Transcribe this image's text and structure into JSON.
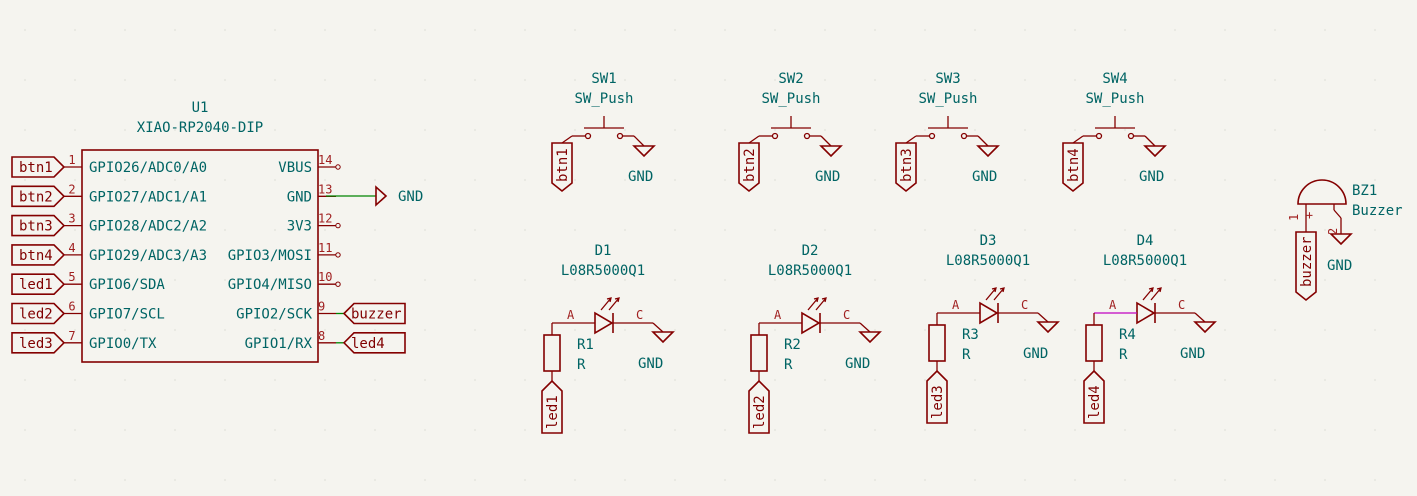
{
  "u1": {
    "ref": "U1",
    "value": "XIAO-RP2040-DIP",
    "left_pins": [
      {
        "num": "1",
        "name": "GPIO26/ADC0/A0",
        "label": "btn1"
      },
      {
        "num": "2",
        "name": "GPIO27/ADC1/A1",
        "label": "btn2"
      },
      {
        "num": "3",
        "name": "GPIO28/ADC2/A2",
        "label": "btn3"
      },
      {
        "num": "4",
        "name": "GPIO29/ADC3/A3",
        "label": "btn4"
      },
      {
        "num": "5",
        "name": "GPIO6/SDA",
        "label": "led1"
      },
      {
        "num": "6",
        "name": "GPIO7/SCL",
        "label": "led2"
      },
      {
        "num": "7",
        "name": "GPIO0/TX",
        "label": "led3"
      }
    ],
    "right_pins": [
      {
        "num": "14",
        "name": "VBUS"
      },
      {
        "num": "13",
        "name": "GND"
      },
      {
        "num": "12",
        "name": "3V3"
      },
      {
        "num": "11",
        "name": "GPIO3/MOSI"
      },
      {
        "num": "10",
        "name": "GPIO4/MISO"
      },
      {
        "num": "9",
        "name": "GPIO2/SCK",
        "label": "buzzer"
      },
      {
        "num": "8",
        "name": "GPIO1/RX",
        "label": "led4"
      }
    ],
    "gnd_label": "GND"
  },
  "switches": [
    {
      "ref": "SW1",
      "value": "SW_Push",
      "label": "btn1",
      "gnd": "GND"
    },
    {
      "ref": "SW2",
      "value": "SW_Push",
      "label": "btn2",
      "gnd": "GND"
    },
    {
      "ref": "SW3",
      "value": "SW_Push",
      "label": "btn3",
      "gnd": "GND"
    },
    {
      "ref": "SW4",
      "value": "SW_Push",
      "label": "btn4",
      "gnd": "GND"
    }
  ],
  "leds": [
    {
      "ref": "D1",
      "value": "L08R5000Q1",
      "anode": "A",
      "cathode": "C",
      "res_ref": "R1",
      "res_value": "R",
      "label": "led1",
      "gnd": "GND"
    },
    {
      "ref": "D2",
      "value": "L08R5000Q1",
      "anode": "A",
      "cathode": "C",
      "res_ref": "R2",
      "res_value": "R",
      "label": "led2",
      "gnd": "GND"
    },
    {
      "ref": "D3",
      "value": "L08R5000Q1",
      "anode": "A",
      "cathode": "C",
      "res_ref": "R3",
      "res_value": "R",
      "label": "led3",
      "gnd": "GND"
    },
    {
      "ref": "D4",
      "value": "L08R5000Q1",
      "anode": "A",
      "cathode": "C",
      "res_ref": "R4",
      "res_value": "R",
      "label": "led4",
      "gnd": "GND"
    }
  ],
  "buzzer": {
    "ref": "BZ1",
    "value": "Buzzer",
    "pin1": "1",
    "pin2": "2",
    "plus": "+",
    "label": "buzzer",
    "gnd": "GND"
  }
}
